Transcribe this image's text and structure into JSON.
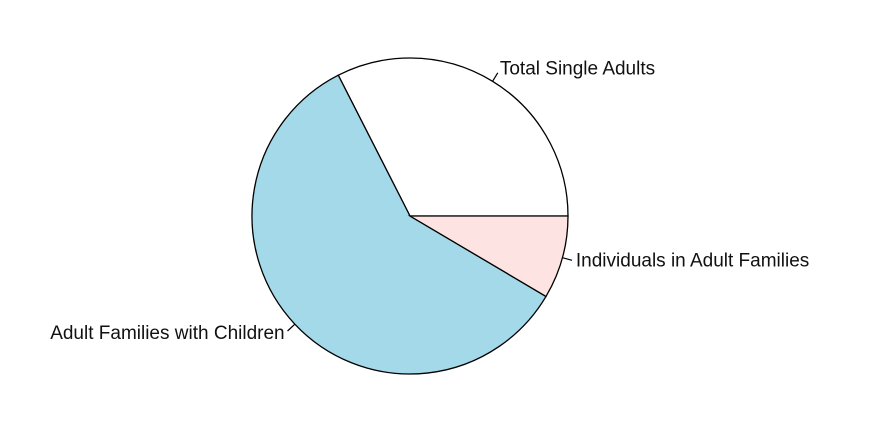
{
  "chart_data": {
    "type": "pie",
    "title": "",
    "direction": "counterclockwise",
    "start_angle_deg": 0,
    "slices": [
      {
        "label": "Total Single Adults",
        "value": 32.5,
        "color": "#ffffff"
      },
      {
        "label": "Adult Families with Children",
        "value": 59.0,
        "color": "#a4d9ea"
      },
      {
        "label": "Individuals in Adult Families",
        "value": 8.5,
        "color": "#fde3e1"
      }
    ]
  }
}
